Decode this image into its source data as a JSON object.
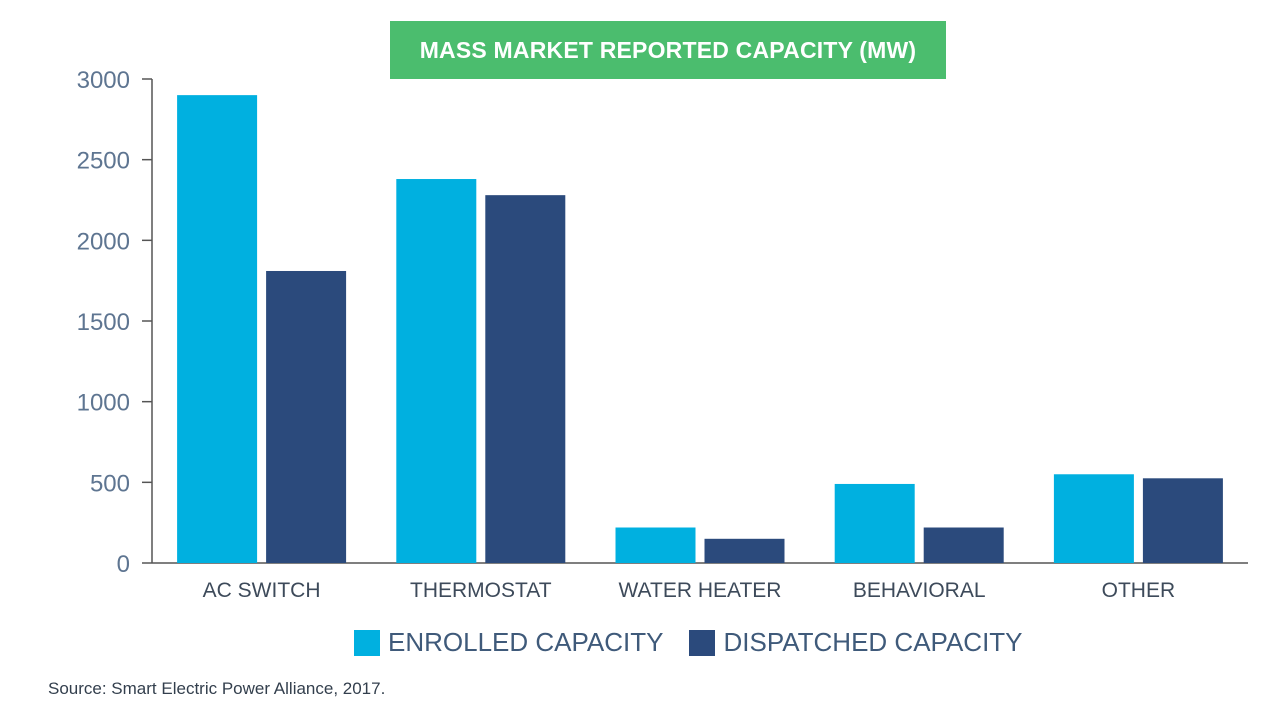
{
  "chart_data": {
    "type": "bar",
    "title": "MASS MARKET REPORTED CAPACITY (MW)",
    "categories": [
      "AC SWITCH",
      "THERMOSTAT",
      "WATER HEATER",
      "BEHAVIORAL",
      "OTHER"
    ],
    "series": [
      {
        "name": "ENROLLED CAPACITY",
        "color": "#00b0e0",
        "values": [
          2900,
          2380,
          220,
          490,
          550
        ]
      },
      {
        "name": "DISPATCHED CAPACITY",
        "color": "#2b4a7c",
        "values": [
          1810,
          2280,
          150,
          220,
          525
        ]
      }
    ],
    "yticks": [
      0,
      500,
      1000,
      1500,
      2000,
      2500,
      3000
    ],
    "ylim": [
      0,
      3000
    ],
    "xlabel": "",
    "ylabel": "",
    "grid": false,
    "legend_position": "bottom"
  },
  "source": "Source: Smart Electric Power Alliance, 2017."
}
